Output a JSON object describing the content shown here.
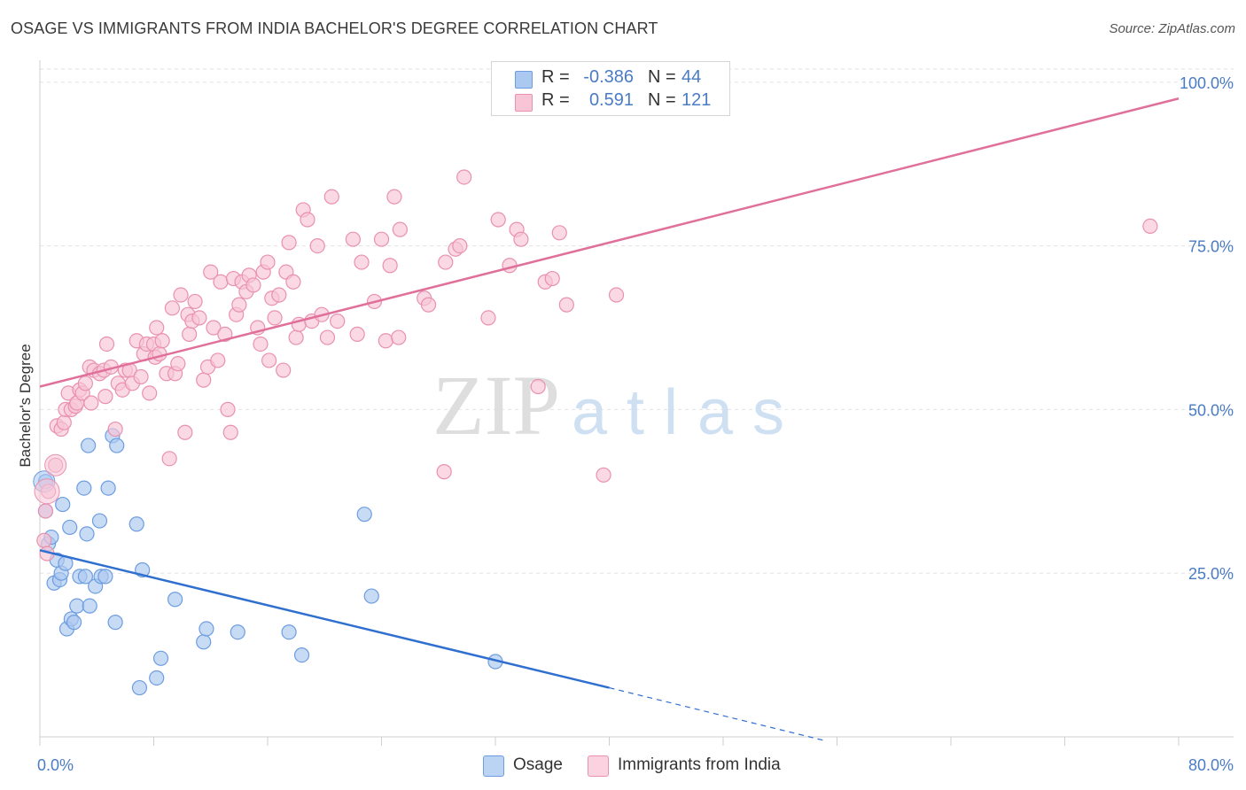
{
  "title": "OSAGE VS IMMIGRANTS FROM INDIA BACHELOR'S DEGREE CORRELATION CHART",
  "source": "Source: ZipAtlas.com",
  "watermark": {
    "zip": "ZIP",
    "atlas": "atlas"
  },
  "legend": {
    "rows": [
      {
        "r_label": "R =",
        "r_value": "-0.386",
        "n_label": "N =",
        "n_value": "44",
        "color": "#aac8f0",
        "border": "#6d9de0"
      },
      {
        "r_label": "R =",
        "r_value": "0.591",
        "n_label": "N =",
        "n_value": "121",
        "color": "#f8c5d6",
        "border": "#e991ae"
      }
    ]
  },
  "bottom_legend": [
    {
      "label": "Osage",
      "color": "#bcd4f3",
      "border": "#6d9de0"
    },
    {
      "label": "Immigrants from India",
      "color": "#fbd3e0",
      "border": "#e991ae"
    }
  ],
  "chart_data": {
    "type": "scatter",
    "title": "OSAGE VS IMMIGRANTS FROM INDIA BACHELOR'S DEGREE CORRELATION CHART",
    "xlabel": "",
    "ylabel": "Bachelor's Degree",
    "xlim": [
      0,
      80
    ],
    "ylim": [
      0,
      102
    ],
    "x_tick_labels": [
      "0.0%",
      "80.0%"
    ],
    "y_ticks": [
      25,
      50,
      75,
      100
    ],
    "y_tick_labels": [
      "25.0%",
      "50.0%",
      "75.0%",
      "100.0%"
    ],
    "grid": true,
    "series": [
      {
        "name": "Osage",
        "color": "#6d9de0",
        "fill": "#aac8f0",
        "points": [
          [
            0.4,
            34.5
          ],
          [
            0.4,
            39.0
          ],
          [
            0.6,
            29.5
          ],
          [
            0.8,
            30.5
          ],
          [
            1.0,
            23.5
          ],
          [
            1.2,
            27.0
          ],
          [
            1.4,
            24.0
          ],
          [
            1.5,
            25.0
          ],
          [
            1.6,
            35.5
          ],
          [
            1.8,
            26.5
          ],
          [
            1.9,
            16.5
          ],
          [
            2.1,
            32.0
          ],
          [
            2.2,
            18.0
          ],
          [
            2.4,
            17.5
          ],
          [
            2.6,
            20.0
          ],
          [
            2.8,
            24.5
          ],
          [
            3.1,
            38.0
          ],
          [
            3.2,
            24.5
          ],
          [
            3.3,
            31.0
          ],
          [
            3.4,
            44.5
          ],
          [
            3.5,
            20.0
          ],
          [
            3.9,
            23.0
          ],
          [
            4.2,
            33.0
          ],
          [
            4.3,
            24.5
          ],
          [
            4.6,
            24.5
          ],
          [
            4.8,
            38.0
          ],
          [
            5.1,
            46.0
          ],
          [
            5.3,
            17.5
          ],
          [
            5.4,
            44.5
          ],
          [
            6.8,
            32.5
          ],
          [
            7.0,
            7.5
          ],
          [
            7.2,
            25.5
          ],
          [
            8.2,
            9.0
          ],
          [
            8.5,
            12.0
          ],
          [
            9.5,
            21.0
          ],
          [
            11.5,
            14.5
          ],
          [
            11.7,
            16.5
          ],
          [
            13.9,
            16.0
          ],
          [
            17.5,
            16.0
          ],
          [
            18.4,
            12.5
          ],
          [
            22.8,
            34.0
          ],
          [
            23.3,
            21.5
          ],
          [
            32.0,
            11.5
          ]
        ]
      },
      {
        "name": "Immigrants from India",
        "color": "#e991ae",
        "fill": "#f8c5d6",
        "points": [
          [
            0.3,
            30.0
          ],
          [
            0.4,
            34.5
          ],
          [
            0.5,
            28.0
          ],
          [
            0.6,
            37.5
          ],
          [
            1.1,
            41.5
          ],
          [
            1.2,
            47.5
          ],
          [
            1.5,
            47.0
          ],
          [
            1.7,
            48.0
          ],
          [
            1.8,
            50.0
          ],
          [
            2.0,
            52.5
          ],
          [
            2.2,
            50.0
          ],
          [
            2.5,
            50.5
          ],
          [
            2.6,
            51.0
          ],
          [
            2.8,
            53.0
          ],
          [
            3.0,
            52.5
          ],
          [
            3.2,
            54.0
          ],
          [
            3.5,
            56.5
          ],
          [
            3.6,
            51.0
          ],
          [
            3.8,
            56.0
          ],
          [
            4.2,
            55.5
          ],
          [
            4.5,
            56.0
          ],
          [
            4.6,
            52.0
          ],
          [
            4.7,
            60.0
          ],
          [
            5.0,
            56.5
          ],
          [
            5.3,
            47.0
          ],
          [
            5.5,
            54.0
          ],
          [
            5.8,
            53.0
          ],
          [
            6.0,
            56.0
          ],
          [
            6.3,
            56.0
          ],
          [
            6.5,
            54.0
          ],
          [
            6.8,
            60.5
          ],
          [
            7.1,
            55.0
          ],
          [
            7.3,
            58.5
          ],
          [
            7.5,
            60.0
          ],
          [
            7.7,
            52.5
          ],
          [
            8.0,
            60.0
          ],
          [
            8.1,
            58.0
          ],
          [
            8.2,
            62.5
          ],
          [
            8.4,
            58.5
          ],
          [
            8.6,
            60.5
          ],
          [
            8.9,
            55.5
          ],
          [
            9.1,
            42.5
          ],
          [
            9.3,
            65.5
          ],
          [
            9.5,
            55.5
          ],
          [
            9.7,
            57.0
          ],
          [
            9.9,
            67.5
          ],
          [
            10.2,
            46.5
          ],
          [
            10.4,
            64.5
          ],
          [
            10.5,
            61.5
          ],
          [
            10.7,
            63.5
          ],
          [
            10.9,
            66.5
          ],
          [
            11.2,
            64.0
          ],
          [
            11.5,
            54.5
          ],
          [
            11.8,
            56.5
          ],
          [
            12.0,
            71.0
          ],
          [
            12.2,
            62.5
          ],
          [
            12.5,
            57.5
          ],
          [
            12.7,
            69.5
          ],
          [
            13.0,
            61.5
          ],
          [
            13.2,
            50.0
          ],
          [
            13.4,
            46.5
          ],
          [
            13.6,
            70.0
          ],
          [
            13.8,
            64.5
          ],
          [
            14.0,
            66.0
          ],
          [
            14.2,
            69.5
          ],
          [
            14.5,
            68.0
          ],
          [
            14.7,
            70.5
          ],
          [
            15.0,
            69.0
          ],
          [
            15.3,
            62.5
          ],
          [
            15.5,
            60.0
          ],
          [
            15.7,
            71.0
          ],
          [
            16.0,
            72.5
          ],
          [
            16.1,
            57.5
          ],
          [
            16.3,
            67.0
          ],
          [
            16.5,
            64.0
          ],
          [
            16.8,
            67.5
          ],
          [
            17.1,
            56.0
          ],
          [
            17.3,
            71.0
          ],
          [
            17.5,
            75.5
          ],
          [
            17.8,
            69.5
          ],
          [
            18.0,
            61.0
          ],
          [
            18.2,
            63.0
          ],
          [
            18.5,
            80.5
          ],
          [
            18.8,
            79.0
          ],
          [
            19.1,
            63.5
          ],
          [
            19.5,
            75.0
          ],
          [
            19.8,
            64.5
          ],
          [
            20.2,
            61.0
          ],
          [
            20.5,
            82.5
          ],
          [
            20.9,
            63.5
          ],
          [
            22.0,
            76.0
          ],
          [
            22.3,
            61.5
          ],
          [
            22.6,
            72.5
          ],
          [
            23.5,
            66.5
          ],
          [
            24.0,
            76.0
          ],
          [
            24.3,
            60.5
          ],
          [
            24.6,
            72.0
          ],
          [
            24.9,
            82.5
          ],
          [
            25.2,
            61.0
          ],
          [
            25.3,
            77.5
          ],
          [
            27.0,
            67.0
          ],
          [
            27.3,
            66.0
          ],
          [
            28.4,
            40.5
          ],
          [
            28.5,
            72.5
          ],
          [
            29.2,
            74.5
          ],
          [
            29.5,
            75.0
          ],
          [
            29.8,
            85.5
          ],
          [
            31.5,
            64.0
          ],
          [
            32.2,
            79.0
          ],
          [
            33.0,
            72.0
          ],
          [
            33.5,
            77.5
          ],
          [
            33.8,
            76.0
          ],
          [
            35.0,
            53.5
          ],
          [
            35.5,
            69.5
          ],
          [
            36.0,
            70.0
          ],
          [
            36.5,
            77.0
          ],
          [
            37.0,
            66.0
          ],
          [
            39.6,
            40.0
          ],
          [
            40.5,
            67.5
          ],
          [
            78.0,
            78.0
          ]
        ]
      }
    ],
    "trend_lines": [
      {
        "series": "Osage",
        "x0": 0,
        "y0": 28.5,
        "x1": 40,
        "y1": 7.5,
        "dashed_to_x": 55,
        "dashed_to_y": -0.5
      },
      {
        "series": "Immigrants from India",
        "x0": 0,
        "y0": 53.5,
        "x1": 80,
        "y1": 97.5
      }
    ]
  }
}
